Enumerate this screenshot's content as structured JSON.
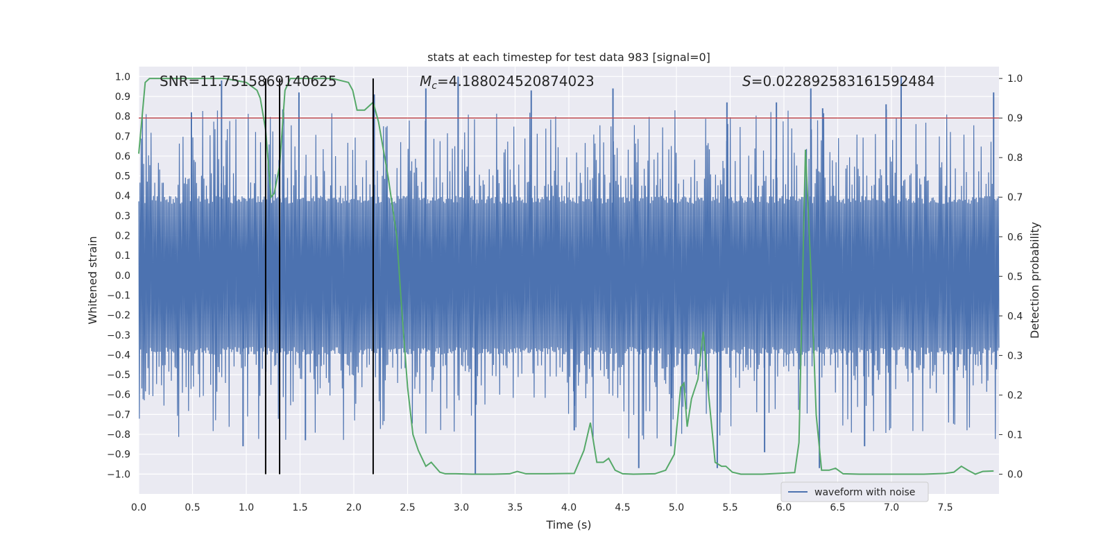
{
  "chart_data": {
    "type": "line",
    "title": "stats at each timestep for test data 983 [signal=0]",
    "xlabel": "Time (s)",
    "ylabel_left": "Whitened strain",
    "ylabel_right": "Detection probability",
    "xlim": [
      0.0,
      8.0
    ],
    "ylim_left": [
      -1.1,
      1.05
    ],
    "ylim_right": [
      -0.05,
      1.03
    ],
    "grid": true,
    "x_ticks": [
      "0.0",
      "0.5",
      "1.0",
      "1.5",
      "2.0",
      "2.5",
      "3.0",
      "3.5",
      "4.0",
      "4.5",
      "5.0",
      "5.5",
      "6.0",
      "6.5",
      "7.0",
      "7.5"
    ],
    "y_left_ticks": [
      "1.0",
      "0.9",
      "0.8",
      "0.7",
      "0.6",
      "0.5",
      "0.4",
      "0.3",
      "0.2",
      "0.1",
      "0.0",
      "−0.1",
      "−0.2",
      "−0.3",
      "−0.4",
      "−0.5",
      "−0.6",
      "−0.7",
      "−0.8",
      "−0.9",
      "−1.0"
    ],
    "y_right_ticks": [
      "1.0",
      "0.9",
      "0.8",
      "0.7",
      "0.6",
      "0.5",
      "0.4",
      "0.3",
      "0.2",
      "0.1",
      "0.0"
    ],
    "annotations": {
      "snr": "SNR=11.7515869140625",
      "mc_symbol": "M",
      "mc_sub": "c",
      "mc_value": "=4.188024520874023",
      "s_symbol": "S",
      "s_value": "=0.022892583161592484"
    },
    "legend": {
      "label": "waveform with noise",
      "placement": "lower-right"
    },
    "threshold_line": {
      "y": 0.9,
      "color": "#c44e52"
    },
    "vertical_markers": [
      1.18,
      1.31,
      2.18
    ],
    "series": [
      {
        "name": "waveform with noise",
        "axis": "left",
        "color": "#4c72b0",
        "envelope": {
          "core_amplitude": 0.4,
          "peak_range": [
            0.45,
            1.0
          ]
        },
        "spikes_up": [
          [
            0.77,
            0.98
          ],
          [
            0.49,
            0.82
          ],
          [
            1.49,
            0.92
          ],
          [
            2.19,
            0.91
          ],
          [
            2.67,
            0.94
          ],
          [
            2.97,
            1.0
          ],
          [
            3.65,
            0.93
          ],
          [
            4.41,
            0.94
          ],
          [
            5.47,
            0.87
          ],
          [
            5.93,
            0.87
          ],
          [
            6.25,
            0.94
          ],
          [
            6.36,
            0.84
          ],
          [
            6.95,
            0.86
          ],
          [
            7.09,
            1.0
          ],
          [
            7.95,
            0.92
          ]
        ],
        "spikes_down": [
          [
            0.97,
            -0.86
          ],
          [
            1.55,
            -0.83
          ],
          [
            3.13,
            -1.0
          ],
          [
            4.05,
            -0.78
          ],
          [
            4.65,
            -0.97
          ],
          [
            4.95,
            -0.86
          ],
          [
            5.38,
            -0.97
          ],
          [
            5.82,
            -0.89
          ],
          [
            6.33,
            -0.97
          ],
          [
            6.75,
            -0.86
          ]
        ]
      },
      {
        "name": "detection probability",
        "axis": "right",
        "color": "#55a868",
        "x": [
          0.0,
          0.03,
          0.06,
          0.1,
          0.2,
          0.4,
          0.8,
          1.0,
          1.1,
          1.13,
          1.18,
          1.23,
          1.26,
          1.31,
          1.36,
          1.41,
          1.46,
          1.5,
          1.56,
          1.62,
          1.8,
          1.95,
          1.99,
          2.03,
          2.1,
          2.18,
          2.23,
          2.32,
          2.4,
          2.45,
          2.5,
          2.55,
          2.6,
          2.67,
          2.72,
          2.8,
          2.85,
          2.95,
          3.1,
          3.3,
          3.45,
          3.52,
          3.6,
          3.8,
          4.05,
          4.14,
          4.2,
          4.26,
          4.32,
          4.37,
          4.43,
          4.5,
          4.6,
          4.8,
          4.9,
          4.98,
          5.04,
          5.07,
          5.1,
          5.14,
          5.2,
          5.25,
          5.3,
          5.36,
          5.42,
          5.46,
          5.52,
          5.6,
          5.8,
          6.1,
          6.14,
          6.2,
          6.25,
          6.3,
          6.35,
          6.42,
          6.48,
          6.55,
          6.7,
          6.85,
          7.0,
          7.3,
          7.5,
          7.58,
          7.65,
          7.71,
          7.78,
          7.85,
          7.95
        ],
        "y": [
          0.81,
          0.9,
          0.99,
          1.0,
          1.0,
          1.0,
          1.0,
          0.99,
          0.97,
          0.95,
          0.87,
          0.7,
          0.71,
          0.78,
          0.97,
          1.0,
          1.0,
          1.0,
          1.0,
          1.0,
          1.0,
          0.99,
          0.97,
          0.92,
          0.92,
          0.94,
          0.89,
          0.75,
          0.6,
          0.4,
          0.22,
          0.1,
          0.06,
          0.02,
          0.03,
          0.005,
          0.001,
          0.001,
          0.0,
          0.0,
          0.001,
          0.007,
          0.001,
          0.001,
          0.002,
          0.06,
          0.13,
          0.03,
          0.03,
          0.04,
          0.01,
          0.001,
          0.0,
          0.001,
          0.01,
          0.05,
          0.22,
          0.23,
          0.12,
          0.19,
          0.24,
          0.36,
          0.2,
          0.03,
          0.02,
          0.02,
          0.005,
          0.0,
          0.0,
          0.004,
          0.08,
          0.82,
          0.52,
          0.15,
          0.01,
          0.01,
          0.015,
          0.001,
          0.0,
          0.0,
          0.0,
          0.0,
          0.002,
          0.005,
          0.02,
          0.01,
          0.0,
          0.007,
          0.008
        ]
      }
    ]
  }
}
